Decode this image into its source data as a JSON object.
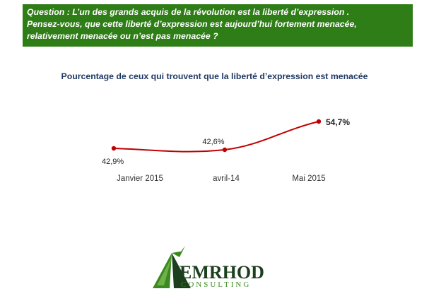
{
  "question": {
    "line1": "Question  :  L’un des grands acquis de la révolution est la liberté d’expression .",
    "line2": "Pensez-vous, que cette liberté d’expression est aujourd’hui fortement menacée,",
    "line3": "relativement menacée ou n’est pas menacée ?"
  },
  "colors": {
    "header_bg": "#2e7d16",
    "title": "#1f3864",
    "line": "#c00000",
    "logo_green": "#3a8a1e",
    "logo_dark": "#1c3f1e"
  },
  "chart_data": {
    "type": "line",
    "title": "Pourcentage de ceux qui trouvent que la liberté d’expression est menacée",
    "categories": [
      "Janvier 2015",
      "avril-14",
      "Mai 2015"
    ],
    "values": [
      42.9,
      42.6,
      54.7
    ],
    "data_labels": [
      "42,9%",
      "42,6%",
      "54,7%"
    ],
    "xlabel": "",
    "ylabel": "",
    "ylim": [
      40,
      56
    ],
    "grid": false,
    "legend": "none"
  },
  "logo": {
    "name": "EMRHOD",
    "tagline": "CONSULTING"
  }
}
